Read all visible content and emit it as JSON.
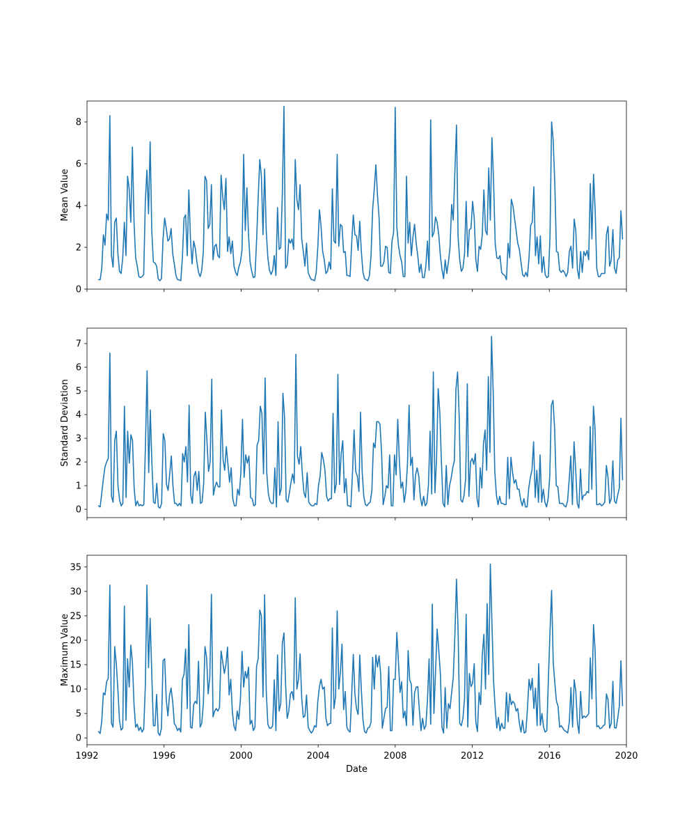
{
  "chart_data": [
    {
      "type": "line",
      "ylabel": "Mean Value",
      "xlabel": "",
      "xlim": [
        1992.0,
        2020.0
      ],
      "ylim": [
        0,
        9
      ],
      "yticks": [
        0,
        2,
        4,
        6,
        8
      ],
      "series": [
        {
          "values": [
            0.45,
            0.45,
            1.0,
            2.6,
            2.1,
            3.6,
            3.3,
            8.3,
            1.6,
            1.05,
            3.2,
            3.4,
            1.7,
            0.85,
            0.75,
            1.5,
            3.2,
            1.6,
            5.4,
            4.8,
            3.2,
            6.8,
            3.2,
            1.5,
            1.1,
            0.6,
            0.55,
            0.6,
            0.7,
            4.2,
            5.7,
            3.6,
            7.05,
            2.8,
            1.3,
            1.25,
            1.1,
            0.5,
            0.4,
            0.5,
            2.4,
            3.4,
            2.9,
            2.3,
            2.4,
            2.9,
            1.7,
            1.2,
            0.65,
            0.45,
            0.45,
            0.4,
            1.5,
            3.4,
            3.55,
            1.6,
            4.75,
            2.4,
            1.2,
            2.3,
            1.95,
            1.3,
            0.8,
            0.6,
            0.9,
            1.8,
            5.4,
            5.2,
            2.9,
            3.1,
            5.0,
            1.4,
            2.05,
            2.15,
            1.6,
            1.5,
            5.45,
            4.4,
            3.8,
            5.3,
            1.8,
            2.5,
            1.7,
            2.3,
            1.1,
            0.8,
            0.65,
            1.05,
            1.3,
            1.9,
            6.45,
            2.8,
            4.85,
            2.6,
            1.3,
            0.85,
            0.55,
            0.6,
            2.3,
            4.35,
            6.2,
            5.4,
            2.6,
            5.75,
            2.8,
            1.5,
            0.9,
            0.7,
            0.9,
            1.6,
            0.65,
            3.9,
            1.9,
            2.0,
            4.6,
            8.75,
            1.0,
            1.15,
            2.4,
            2.2,
            2.4,
            1.9,
            6.2,
            4.3,
            3.8,
            5.0,
            2.4,
            1.8,
            1.1,
            2.2,
            0.8,
            0.6,
            0.45,
            0.45,
            0.4,
            0.8,
            2.0,
            3.8,
            3.0,
            1.8,
            1.4,
            0.75,
            0.85,
            1.3,
            0.95,
            4.8,
            2.3,
            2.2,
            6.45,
            2.05,
            3.1,
            3.0,
            1.75,
            1.8,
            0.65,
            0.65,
            0.6,
            2.2,
            3.55,
            2.6,
            2.55,
            1.85,
            3.25,
            1.8,
            0.8,
            0.5,
            0.45,
            0.4,
            0.65,
            1.6,
            3.8,
            4.8,
            5.95,
            4.5,
            3.4,
            1.1,
            1.1,
            1.3,
            2.05,
            2.0,
            0.8,
            0.75,
            2.3,
            2.7,
            8.7,
            3.0,
            2.1,
            1.6,
            1.3,
            0.6,
            0.6,
            5.4,
            2.2,
            3.2,
            1.6,
            2.5,
            3.1,
            2.2,
            1.6,
            0.8,
            1.2,
            0.55,
            0.55,
            1.1,
            2.3,
            0.9,
            8.1,
            2.5,
            2.7,
            3.45,
            3.2,
            2.6,
            1.6,
            0.95,
            0.5,
            1.4,
            0.75,
            1.3,
            2.0,
            4.05,
            3.3,
            5.6,
            7.85,
            2.5,
            1.4,
            0.85,
            1.0,
            1.7,
            4.2,
            1.55,
            2.85,
            2.9,
            4.2,
            3.4,
            1.4,
            0.85,
            2.05,
            1.9,
            2.6,
            4.75,
            2.8,
            2.6,
            5.8,
            3.3,
            7.25,
            5.15,
            2.2,
            1.5,
            1.45,
            1.6,
            0.8,
            0.7,
            0.65,
            0.45,
            2.2,
            1.5,
            4.3,
            4.0,
            3.4,
            2.8,
            2.2,
            1.9,
            1.3,
            0.7,
            0.6,
            0.8,
            0.6,
            1.5,
            3.05,
            3.2,
            4.9,
            1.6,
            2.5,
            1.2,
            2.55,
            0.8,
            1.55,
            0.7,
            0.55,
            0.6,
            2.5,
            8.0,
            7.1,
            5.0,
            1.8,
            1.75,
            0.9,
            0.8,
            0.9,
            0.8,
            0.6,
            0.8,
            1.8,
            2.05,
            1.0,
            3.35,
            2.8,
            0.95,
            0.5,
            1.8,
            0.8,
            1.8,
            1.6,
            1.85,
            1.4,
            5.05,
            2.4,
            5.5,
            3.8,
            1.0,
            0.6,
            0.6,
            0.75,
            0.75,
            0.75,
            2.6,
            3.0,
            1.1,
            1.4,
            2.85,
            1.0,
            0.75,
            1.4,
            1.5,
            3.75,
            2.4
          ]
        }
      ]
    },
    {
      "type": "line",
      "ylabel": "Standard Deviation",
      "xlabel": "",
      "xlim": [
        1992.0,
        2020.0
      ],
      "ylim": [
        -0.35,
        7.65
      ],
      "yticks": [
        0,
        1,
        2,
        3,
        4,
        5,
        6,
        7
      ],
      "series": [
        {
          "values": [
            0.15,
            0.1,
            0.7,
            1.3,
            1.8,
            2.0,
            2.15,
            6.6,
            0.55,
            0.3,
            2.9,
            3.3,
            1.0,
            0.4,
            0.15,
            0.25,
            4.35,
            0.5,
            3.3,
            1.95,
            3.15,
            2.9,
            0.9,
            0.15,
            0.35,
            0.15,
            0.2,
            0.15,
            0.2,
            2.7,
            5.85,
            1.55,
            4.2,
            1.9,
            0.3,
            0.25,
            1.1,
            0.1,
            0.05,
            0.25,
            3.2,
            2.9,
            1.05,
            0.8,
            1.5,
            2.25,
            1.0,
            0.25,
            0.25,
            0.15,
            0.25,
            0.15,
            2.35,
            2.0,
            2.65,
            1.15,
            4.4,
            0.6,
            0.25,
            1.4,
            1.6,
            0.8,
            1.6,
            0.25,
            0.3,
            1.1,
            4.1,
            2.9,
            1.6,
            2.0,
            5.5,
            0.6,
            0.95,
            1.15,
            0.95,
            0.95,
            4.2,
            2.1,
            1.65,
            2.65,
            1.9,
            1.15,
            1.75,
            0.45,
            0.15,
            0.15,
            0.85,
            0.6,
            1.55,
            3.8,
            1.35,
            2.3,
            1.95,
            2.25,
            0.5,
            0.45,
            0.15,
            0.2,
            2.7,
            2.9,
            4.35,
            4.05,
            1.5,
            5.55,
            1.55,
            0.65,
            0.35,
            0.25,
            0.25,
            1.75,
            0.1,
            3.7,
            0.6,
            0.9,
            4.9,
            3.9,
            0.4,
            0.3,
            0.7,
            1.15,
            1.5,
            1.1,
            6.55,
            2.25,
            1.9,
            2.65,
            1.5,
            0.7,
            0.5,
            1.55,
            0.3,
            0.2,
            0.15,
            0.15,
            0.25,
            0.2,
            1.0,
            1.4,
            2.4,
            2.1,
            1.65,
            0.55,
            0.35,
            0.45,
            0.45,
            4.05,
            0.7,
            1.1,
            5.7,
            1.05,
            2.35,
            2.9,
            0.7,
            1.3,
            0.15,
            0.15,
            0.1,
            1.5,
            3.35,
            1.6,
            1.4,
            0.75,
            4.1,
            1.6,
            0.55,
            0.2,
            0.15,
            0.25,
            0.3,
            0.8,
            2.8,
            2.6,
            3.7,
            3.7,
            3.6,
            2.4,
            0.2,
            0.55,
            1.0,
            0.9,
            2.3,
            0.15,
            0.15,
            2.3,
            1.45,
            3.8,
            2.05,
            0.9,
            1.15,
            0.3,
            0.75,
            1.9,
            4.4,
            1.85,
            2.2,
            0.4,
            1.45,
            1.75,
            1.4,
            0.5,
            0.15,
            0.55,
            0.15,
            0.25,
            1.05,
            3.3,
            0.65,
            5.8,
            0.7,
            2.15,
            5.1,
            4.1,
            2.0,
            0.25,
            0.1,
            1.85,
            0.2,
            1.0,
            1.3,
            1.75,
            2.05,
            5.1,
            5.8,
            3.9,
            0.4,
            0.3,
            0.6,
            1.3,
            5.3,
            0.55,
            2.0,
            2.15,
            1.9,
            2.35,
            0.45,
            0.1,
            1.75,
            0.9,
            2.75,
            3.35,
            1.65,
            5.6,
            2.4,
            7.3,
            5.0,
            1.6,
            0.6,
            0.2,
            0.55,
            0.25,
            0.25,
            0.2,
            0.2,
            2.2,
            0.45,
            2.2,
            1.55,
            1.1,
            1.25,
            0.85,
            0.85,
            0.4,
            0.15,
            0.45,
            0.1,
            0.1,
            0.9,
            1.35,
            1.65,
            2.85,
            0.5,
            1.65,
            0.3,
            2.3,
            0.3,
            0.85,
            0.3,
            0.1,
            0.45,
            1.4,
            4.4,
            4.6,
            3.4,
            1.0,
            0.95,
            0.25,
            0.25,
            0.25,
            0.15,
            0.1,
            0.35,
            1.25,
            2.25,
            0.2,
            2.85,
            1.7,
            0.25,
            0.05,
            1.7,
            0.4,
            0.6,
            0.6,
            0.75,
            0.7,
            3.5,
            0.85,
            4.35,
            3.4,
            0.2,
            0.2,
            0.25,
            0.15,
            0.2,
            0.3,
            1.85,
            1.35,
            0.25,
            0.45,
            2.05,
            0.35,
            0.25,
            0.6,
            0.9,
            3.85,
            1.25
          ]
        }
      ]
    },
    {
      "type": "line",
      "ylabel": "Maximum Value",
      "xlabel": "Date",
      "xlim": [
        1992.0,
        2020.0
      ],
      "ylim": [
        -1.4,
        37.4
      ],
      "yticks": [
        0,
        5,
        10,
        15,
        20,
        25,
        30,
        35
      ],
      "xticks": [
        1992,
        1996,
        2000,
        2004,
        2008,
        2012,
        2016,
        2020
      ],
      "series": [
        {
          "values": [
            1.3,
            0.9,
            3.5,
            9.2,
            8.8,
            11.5,
            12.2,
            31.3,
            3.0,
            2.2,
            18.7,
            15.2,
            9.8,
            3.5,
            1.6,
            2.0,
            27.0,
            3.6,
            16.2,
            10.4,
            19.0,
            15.5,
            6.8,
            2.2,
            2.8,
            1.5,
            2.2,
            1.2,
            1.8,
            10.5,
            31.3,
            14.4,
            24.5,
            13.2,
            2.5,
            2.5,
            8.9,
            1.0,
            0.5,
            2.0,
            15.8,
            16.2,
            7.8,
            4.5,
            8.7,
            10.2,
            7.3,
            2.9,
            2.4,
            1.5,
            2.0,
            1.2,
            12.0,
            13.0,
            18.2,
            6.0,
            23.2,
            2.2,
            2.0,
            6.8,
            7.5,
            7.0,
            15.7,
            2.2,
            3.0,
            7.0,
            18.7,
            16.5,
            9.0,
            12.5,
            29.4,
            4.3,
            5.5,
            6.0,
            5.5,
            6.2,
            17.8,
            15.6,
            13.2,
            15.0,
            18.6,
            8.8,
            12.0,
            5.3,
            2.4,
            1.5,
            5.5,
            3.8,
            8.0,
            17.7,
            10.4,
            13.6,
            12.2,
            14.5,
            2.8,
            3.6,
            1.5,
            2.2,
            14.7,
            16.2,
            26.2,
            25.0,
            8.4,
            29.3,
            9.8,
            2.8,
            2.0,
            2.0,
            2.5,
            11.9,
            1.5,
            17.0,
            5.5,
            7.0,
            19.4,
            21.5,
            11.0,
            4.0,
            5.5,
            9.0,
            9.5,
            7.8,
            28.7,
            10.0,
            12.0,
            17.2,
            8.2,
            4.2,
            4.5,
            8.8,
            2.2,
            1.5,
            1.0,
            1.5,
            2.5,
            2.2,
            7.5,
            10.5,
            12.0,
            10.0,
            10.4,
            4.1,
            2.5,
            2.9,
            3.0,
            22.5,
            6.0,
            8.5,
            26.0,
            10.0,
            13.5,
            19.2,
            5.8,
            9.5,
            2.2,
            1.5,
            1.2,
            8.7,
            17.1,
            9.0,
            6.0,
            4.8,
            17.0,
            9.8,
            3.7,
            1.3,
            1.0,
            2.0,
            2.2,
            3.2,
            16.5,
            10.0,
            17.0,
            14.5,
            16.8,
            13.0,
            2.0,
            4.0,
            6.0,
            6.3,
            14.6,
            1.5,
            1.5,
            12.0,
            12.0,
            21.6,
            15.5,
            9.3,
            11.5,
            4.1,
            5.5,
            2.5,
            17.9,
            11.8,
            11.0,
            2.6,
            9.2,
            10.4,
            10.5,
            5.6,
            1.5,
            4.0,
            1.8,
            2.5,
            7.7,
            16.2,
            2.8,
            27.4,
            5.0,
            13.5,
            22.3,
            18.0,
            13.2,
            2.2,
            1.0,
            10.3,
            2.0,
            7.0,
            6.0,
            9.3,
            12.3,
            21.0,
            32.5,
            22.0,
            3.0,
            2.5,
            4.0,
            8.0,
            25.3,
            2.2,
            13.2,
            10.5,
            11.2,
            15.2,
            3.2,
            1.3,
            9.3,
            6.8,
            17.0,
            21.2,
            10.0,
            27.5,
            13.0,
            35.6,
            23.5,
            11.6,
            6.1,
            2.0,
            4.2,
            1.5,
            3.0,
            2.0,
            2.0,
            9.3,
            3.3,
            9.0,
            6.8,
            7.5,
            7.0,
            5.5,
            6.0,
            3.0,
            1.2,
            3.6,
            1.0,
            1.2,
            5.9,
            12.0,
            9.8,
            12.2,
            6.0,
            10.2,
            2.5,
            15.2,
            2.6,
            5.0,
            2.2,
            1.2,
            1.5,
            12.0,
            21.7,
            30.2,
            15.5,
            11.2,
            7.5,
            6.5,
            2.2,
            2.5,
            2.0,
            1.5,
            1.3,
            1.0,
            3.3,
            10.3,
            2.2,
            11.9,
            9.6,
            3.2,
            0.9,
            9.5,
            4.0,
            4.5,
            4.2,
            4.5,
            5.0,
            16.4,
            8.0,
            23.2,
            17.8,
            2.3,
            2.5,
            1.9,
            2.0,
            2.5,
            2.7,
            9.0,
            7.8,
            2.0,
            3.0,
            11.6,
            2.1,
            2.0,
            4.0,
            6.5,
            15.8,
            6.6
          ]
        }
      ]
    }
  ]
}
